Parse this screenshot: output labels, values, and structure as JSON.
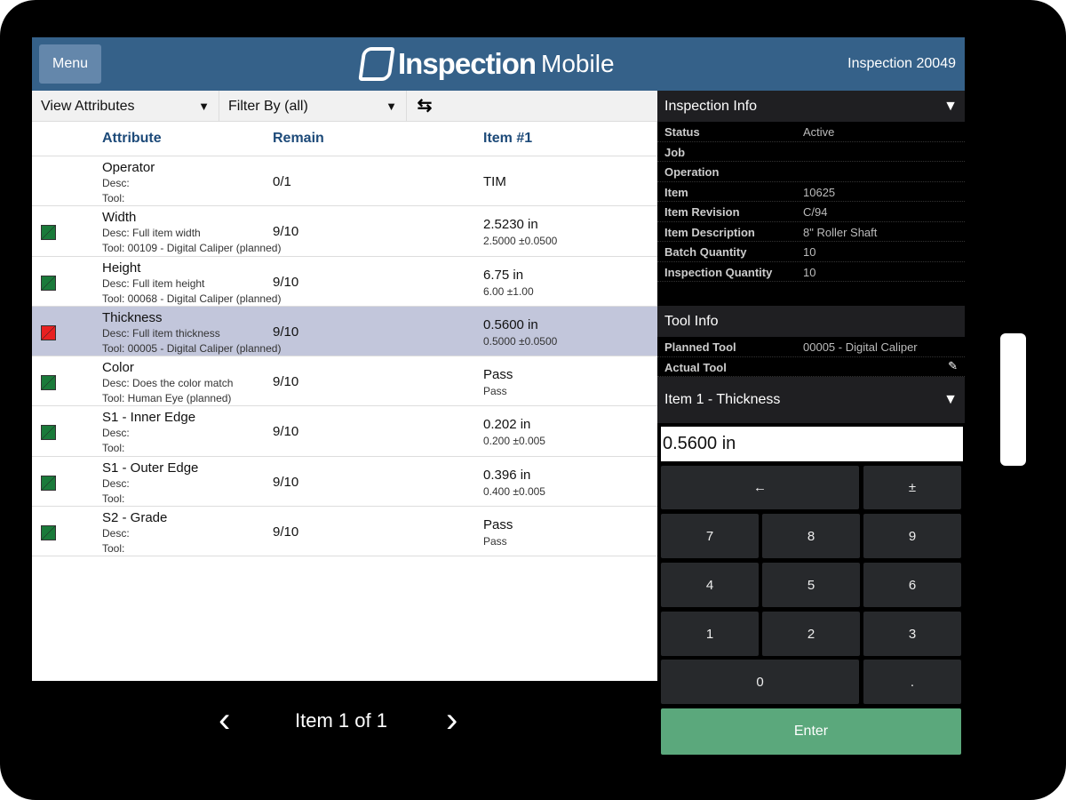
{
  "header": {
    "menu": "Menu",
    "logo_bold": "Inspection",
    "logo_light": "Mobile",
    "inspection": "Inspection 20049"
  },
  "toolbar": {
    "view": "View Attributes",
    "filter": "Filter By (all)"
  },
  "table": {
    "headers": [
      "Attribute",
      "Remain",
      "Item #1"
    ],
    "rows": [
      {
        "name": "Operator",
        "desc": "Desc:",
        "tool": "Tool:",
        "remain": "0/1",
        "value": "TIM",
        "tol": "",
        "status": ""
      },
      {
        "name": "Width",
        "desc": "Desc: Full item width",
        "tool": "Tool: 00109 - Digital Caliper (planned)",
        "remain": "9/10",
        "value": "2.5230 in",
        "tol": "2.5000 ±0.0500",
        "status": "#1a7a3a"
      },
      {
        "name": "Height",
        "desc": "Desc: Full item height",
        "tool": "Tool: 00068 - Digital Caliper (planned)",
        "remain": "9/10",
        "value": "6.75 in",
        "tol": "6.00 ±1.00",
        "status": "#1a7a3a"
      },
      {
        "name": "Thickness",
        "desc": "Desc: Full item thickness",
        "tool": "Tool: 00005 - Digital Caliper (planned)",
        "remain": "9/10",
        "value": "0.5600 in",
        "tol": "0.5000 ±0.0500",
        "status": "#e82020",
        "selected": true
      },
      {
        "name": "Color",
        "desc": "Desc: Does the color match",
        "tool": "Tool: Human Eye (planned)",
        "remain": "9/10",
        "value": "Pass",
        "tol": "Pass",
        "status": "#1a7a3a"
      },
      {
        "name": "S1 - Inner Edge",
        "desc": "Desc:",
        "tool": "Tool:",
        "remain": "9/10",
        "value": "0.202 in",
        "tol": "0.200 ±0.005",
        "status": "#1a7a3a"
      },
      {
        "name": "S1 - Outer Edge",
        "desc": "Desc:",
        "tool": "Tool:",
        "remain": "9/10",
        "value": "0.396 in",
        "tol": "0.400 ±0.005",
        "status": "#1a7a3a"
      },
      {
        "name": "S2 - Grade",
        "desc": "Desc:",
        "tool": "Tool:",
        "remain": "9/10",
        "value": "Pass",
        "tol": "Pass",
        "status": "#1a7a3a"
      }
    ]
  },
  "nav": {
    "label": "Item 1 of 1",
    "prev": "‹",
    "next": "›"
  },
  "info": {
    "title": "Inspection Info",
    "rows": [
      {
        "k": "Status",
        "v": "Active"
      },
      {
        "k": "Job",
        "v": ""
      },
      {
        "k": "Operation",
        "v": ""
      },
      {
        "k": "Item",
        "v": "10625"
      },
      {
        "k": "Item Revision",
        "v": "C/94"
      },
      {
        "k": "Item Description",
        "v": "8\" Roller Shaft"
      },
      {
        "k": "Batch Quantity",
        "v": "10"
      },
      {
        "k": "Inspection Quantity",
        "v": "10"
      }
    ]
  },
  "tool": {
    "title": "Tool Info",
    "planned_label": "Planned Tool",
    "planned": "00005 - Digital Caliper",
    "actual_label": "Actual Tool"
  },
  "entry": {
    "title": "Item 1 - Thickness",
    "value": "0.5600 in"
  },
  "keypad": {
    "back": "←",
    "sign": "±",
    "keys": [
      "7",
      "8",
      "9",
      "4",
      "5",
      "6",
      "1",
      "2",
      "3"
    ],
    "zero": "0",
    "dot": ".",
    "enter": "Enter"
  }
}
